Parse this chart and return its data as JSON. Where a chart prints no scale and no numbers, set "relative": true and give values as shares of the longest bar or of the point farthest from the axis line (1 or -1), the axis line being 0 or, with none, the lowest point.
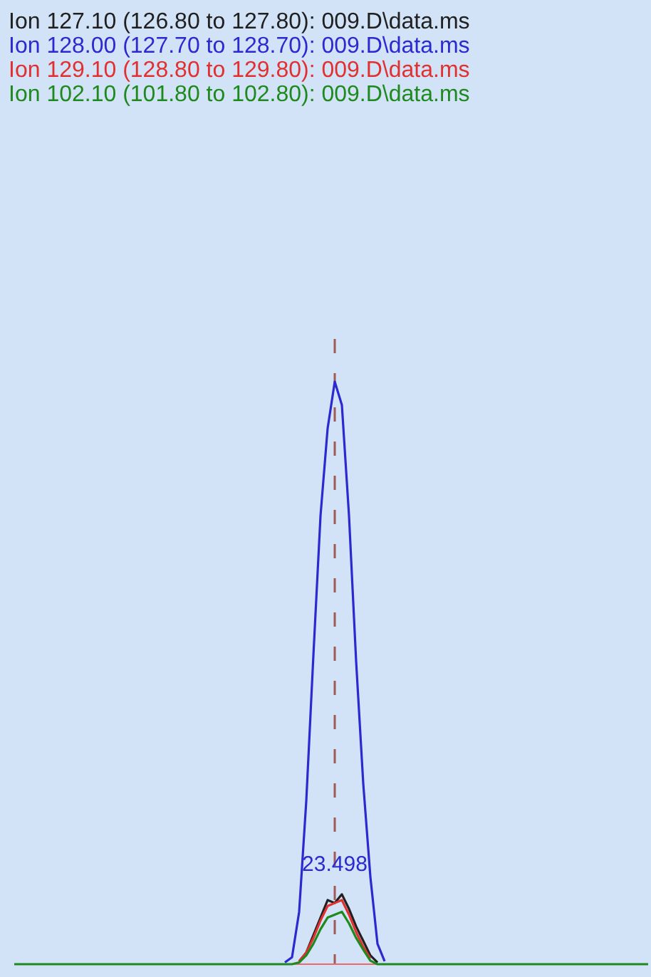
{
  "chart_data": {
    "type": "line",
    "relative": true,
    "marker": "none",
    "line_style": "solid",
    "annotations": [
      "23.498"
    ],
    "categories": [
      null,
      null,
      null,
      null,
      null,
      null,
      null,
      null,
      null,
      null,
      null,
      null,
      null,
      null,
      null,
      null,
      null,
      null,
      null,
      null,
      null,
      null,
      null,
      null,
      null,
      null,
      null,
      null,
      null,
      null,
      null,
      null,
      null,
      null,
      null,
      null,
      null,
      null,
      null,
      null,
      null,
      null,
      null,
      null,
      null,
      null,
      null,
      null,
      null,
      null,
      null,
      null,
      null,
      null,
      null,
      null,
      null,
      null,
      null,
      null,
      null,
      null,
      null,
      null,
      null,
      null,
      null,
      null,
      null,
      null,
      null,
      null,
      null,
      null,
      null,
      null,
      null,
      null,
      null,
      null,
      null,
      null,
      null,
      null,
      null,
      null,
      null,
      null,
      null,
      null
    ],
    "series": [
      {
        "name": "Ion 127.10 (126.80 to 127.80): 009.D\\data.ms",
        "color": "#202020",
        "values": [
          null,
          null,
          null,
          null,
          null,
          null,
          null,
          null,
          null,
          null,
          null,
          null,
          null,
          null,
          null,
          null,
          null,
          null,
          null,
          null,
          null,
          null,
          null,
          null,
          null,
          null,
          null,
          null,
          null,
          null,
          null,
          null,
          null,
          null,
          null,
          null,
          null,
          null,
          null,
          null,
          0.005,
          0.02,
          0.05,
          0.08,
          0.11,
          0.105,
          0.12,
          0.095,
          0.065,
          0.04,
          0.015,
          0.003,
          null,
          null,
          null,
          null,
          null,
          null,
          null,
          null,
          null,
          null,
          null,
          null,
          null,
          null,
          null,
          null,
          null,
          null,
          null,
          null,
          null,
          null,
          null,
          null,
          null,
          null,
          null,
          null,
          null,
          null,
          null,
          null,
          null,
          null,
          null,
          null,
          null,
          null
        ]
      },
      {
        "name": "Ion 128.00 (127.70 to 128.70): 009.D\\data.ms",
        "color": "#2a2ad0",
        "values": [
          null,
          null,
          null,
          null,
          null,
          null,
          null,
          null,
          null,
          null,
          null,
          null,
          null,
          null,
          null,
          null,
          null,
          null,
          null,
          null,
          null,
          null,
          null,
          null,
          null,
          null,
          null,
          null,
          null,
          null,
          null,
          null,
          null,
          null,
          null,
          null,
          null,
          null,
          0.003,
          0.012,
          0.09,
          0.28,
          0.53,
          0.77,
          0.92,
          1,
          0.96,
          0.77,
          0.52,
          0.31,
          0.15,
          0.035,
          0.005,
          null,
          null,
          null,
          null,
          null,
          null,
          null,
          null,
          null,
          null,
          null,
          null,
          null,
          null,
          null,
          null,
          null,
          null,
          null,
          null,
          null,
          null,
          null,
          null,
          null,
          null,
          null,
          null,
          null,
          null,
          null,
          null,
          null,
          null,
          null,
          null,
          null
        ]
      },
      {
        "name": "Ion 129.10 (128.80 to 129.80): 009.D\\data.ms",
        "color": "#e03030",
        "values": [
          null,
          null,
          null,
          null,
          null,
          null,
          null,
          null,
          null,
          null,
          null,
          null,
          null,
          null,
          null,
          null,
          null,
          null,
          null,
          null,
          null,
          null,
          null,
          null,
          null,
          null,
          null,
          null,
          null,
          null,
          null,
          null,
          null,
          null,
          null,
          null,
          null,
          null,
          null,
          null,
          0.005,
          0.02,
          0.045,
          0.075,
          0.1,
          0.105,
          0.11,
          0.085,
          0.055,
          0.03,
          0.01,
          null,
          null,
          null,
          null,
          null,
          null,
          null,
          null,
          null,
          null,
          null,
          null,
          null,
          null,
          null,
          null,
          null,
          null,
          null,
          null,
          null,
          null,
          null,
          null,
          null,
          null,
          null,
          null,
          null,
          null,
          null,
          null,
          null,
          null,
          null,
          null,
          null,
          null,
          null
        ]
      },
      {
        "name": "Ion 102.10 (101.80 to 102.80): 009.D\\data.ms",
        "color": "#1e8a1e",
        "values": [
          0,
          0,
          0,
          0,
          0,
          0,
          0,
          0,
          0,
          0,
          0,
          0,
          0,
          0,
          0,
          0,
          0,
          0,
          0,
          0,
          0,
          0,
          0,
          0,
          0,
          0,
          0,
          0,
          0,
          0,
          0,
          0,
          0,
          0,
          0,
          0,
          0,
          0,
          0,
          0,
          0.003,
          0.015,
          0.035,
          0.06,
          0.08,
          0.085,
          0.09,
          0.07,
          0.045,
          0.025,
          0.006,
          0,
          0,
          0,
          0,
          0,
          0,
          0,
          0,
          0,
          0,
          0,
          0,
          0,
          0,
          0,
          0,
          0,
          0,
          0,
          0,
          0,
          0,
          0,
          0,
          0,
          0,
          0,
          0,
          0,
          0,
          0,
          0,
          0,
          0,
          0,
          0,
          0,
          0,
          0
        ]
      }
    ]
  }
}
